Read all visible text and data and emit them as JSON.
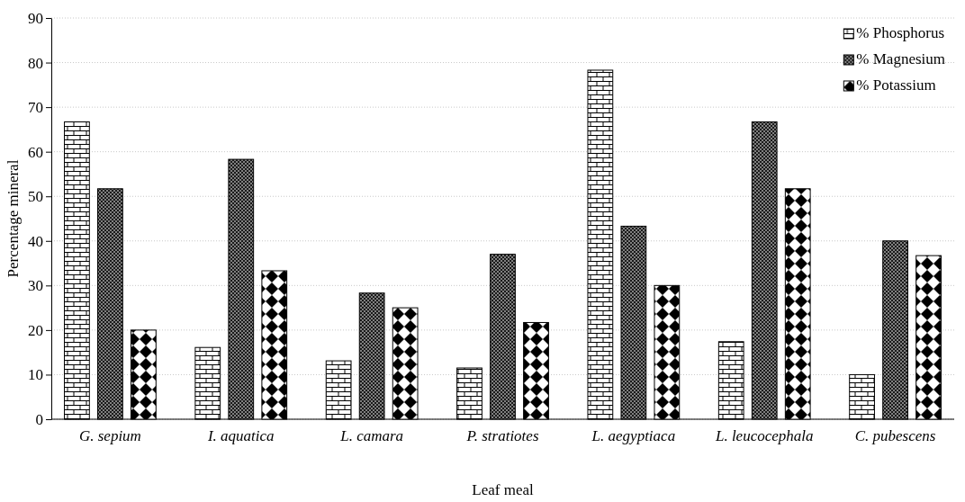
{
  "chart_data": {
    "type": "bar",
    "xlabel": "Leaf meal",
    "ylabel": "Percentage mineral",
    "categories": [
      "G. sepium",
      "I. aquatica",
      "L. camara",
      "P. stratiotes",
      "L. aegyptiaca",
      "L. leucocephala",
      "C. pubescens"
    ],
    "series": [
      {
        "name": "% Phosphorus",
        "color": "#000000",
        "values": [
          66.7,
          16.1,
          13.1,
          11.5,
          78.3,
          17.4,
          10
        ]
      },
      {
        "name": "% Magnesium",
        "color": "#000000",
        "values": [
          51.7,
          58.3,
          28.3,
          37,
          43.3,
          66.7,
          40
        ]
      },
      {
        "name": "% Potassium",
        "color": "#000000",
        "values": [
          20,
          33.3,
          25,
          21.7,
          30,
          51.7,
          36.7
        ]
      }
    ],
    "ylim": [
      0,
      90
    ],
    "yticks": [
      0,
      10,
      20,
      30,
      40,
      50,
      60,
      70,
      80,
      90
    ],
    "grid": "y",
    "legend": "top right"
  }
}
